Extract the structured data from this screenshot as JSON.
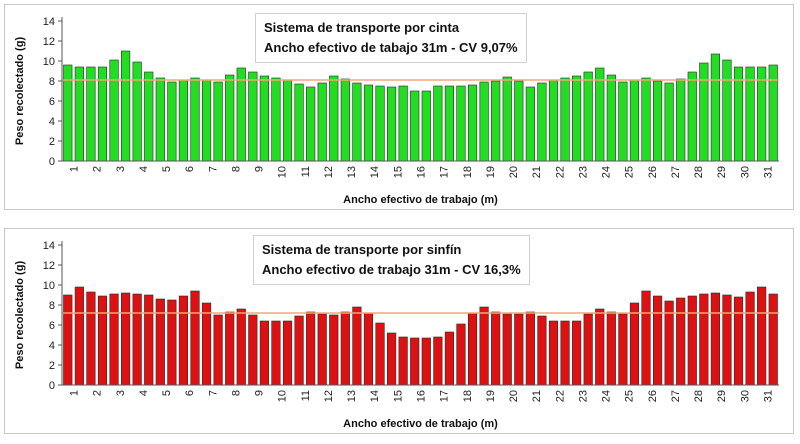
{
  "chart_data": [
    {
      "type": "bar",
      "title": "Sistema de transporte por cinta",
      "subtitle": "Ancho efectivo de tabajo 31m - CV 9,07%",
      "xlabel": "Ancho efectivo de trabajo (m)",
      "ylabel": "Peso recolectado (g)",
      "ylim": [
        0,
        14
      ],
      "yticks": [
        0,
        2,
        4,
        6,
        8,
        10,
        12,
        14
      ],
      "xticks": [
        "1",
        "2",
        "3",
        "4",
        "5",
        "6",
        "7",
        "8",
        "9",
        "10",
        "11",
        "12",
        "13",
        "14",
        "15",
        "16",
        "17",
        "18",
        "19",
        "20",
        "21",
        "22",
        "23",
        "24",
        "25",
        "26",
        "27",
        "28",
        "29",
        "30",
        "31"
      ],
      "bar_color": "#22dd22",
      "reference_line": 8.1,
      "reference_color": "#f0a878",
      "grid": false,
      "values": [
        9.6,
        9.4,
        9.4,
        9.4,
        10.1,
        11.0,
        9.9,
        8.9,
        8.3,
        7.9,
        8.1,
        8.3,
        8.1,
        7.9,
        8.6,
        9.3,
        8.9,
        8.5,
        8.3,
        8.1,
        7.7,
        7.4,
        7.8,
        8.5,
        8.2,
        7.8,
        7.6,
        7.5,
        7.4,
        7.5,
        7.0,
        7.0,
        7.5,
        7.5,
        7.5,
        7.6,
        7.9,
        8.0,
        8.4,
        8.0,
        7.4,
        7.8,
        8.1,
        8.3,
        8.5,
        8.9,
        9.3,
        8.6,
        7.9,
        8.1,
        8.3,
        8.0,
        7.8,
        8.2,
        8.9,
        9.8,
        10.7,
        10.1,
        9.4,
        9.4,
        9.4,
        9.6
      ]
    },
    {
      "type": "bar",
      "title": "Sistema de transporte por sinfín",
      "subtitle": "Ancho efectivo de trabajo 31m - CV 16,3%",
      "xlabel": "Ancho efectivo de trabajo (m)",
      "ylabel": "Peso recolectado (g)",
      "ylim": [
        0,
        14
      ],
      "yticks": [
        0,
        2,
        4,
        6,
        8,
        10,
        12,
        14
      ],
      "xticks": [
        "1",
        "2",
        "3",
        "4",
        "5",
        "6",
        "7",
        "8",
        "9",
        "10",
        "11",
        "12",
        "13",
        "14",
        "15",
        "16",
        "17",
        "18",
        "19",
        "20",
        "21",
        "22",
        "23",
        "24",
        "25",
        "26",
        "27",
        "28",
        "29",
        "30",
        "31"
      ],
      "bar_color": "#dd1111",
      "reference_line": 7.2,
      "reference_color": "#f0a878",
      "grid": false,
      "values": [
        9.0,
        9.8,
        9.3,
        8.9,
        9.1,
        9.2,
        9.1,
        9.0,
        8.6,
        8.5,
        8.9,
        9.4,
        8.2,
        7.0,
        7.3,
        7.6,
        7.0,
        6.4,
        6.4,
        6.4,
        6.9,
        7.3,
        7.1,
        7.0,
        7.3,
        7.8,
        7.2,
        6.2,
        5.2,
        4.8,
        4.7,
        4.7,
        4.8,
        5.3,
        6.1,
        7.2,
        7.8,
        7.3,
        7.1,
        7.1,
        7.3,
        6.9,
        6.4,
        6.4,
        6.4,
        7.1,
        7.6,
        7.3,
        7.1,
        8.2,
        9.4,
        8.9,
        8.4,
        8.7,
        8.9,
        9.1,
        9.2,
        9.0,
        8.8,
        9.3,
        9.8,
        9.1
      ]
    }
  ]
}
